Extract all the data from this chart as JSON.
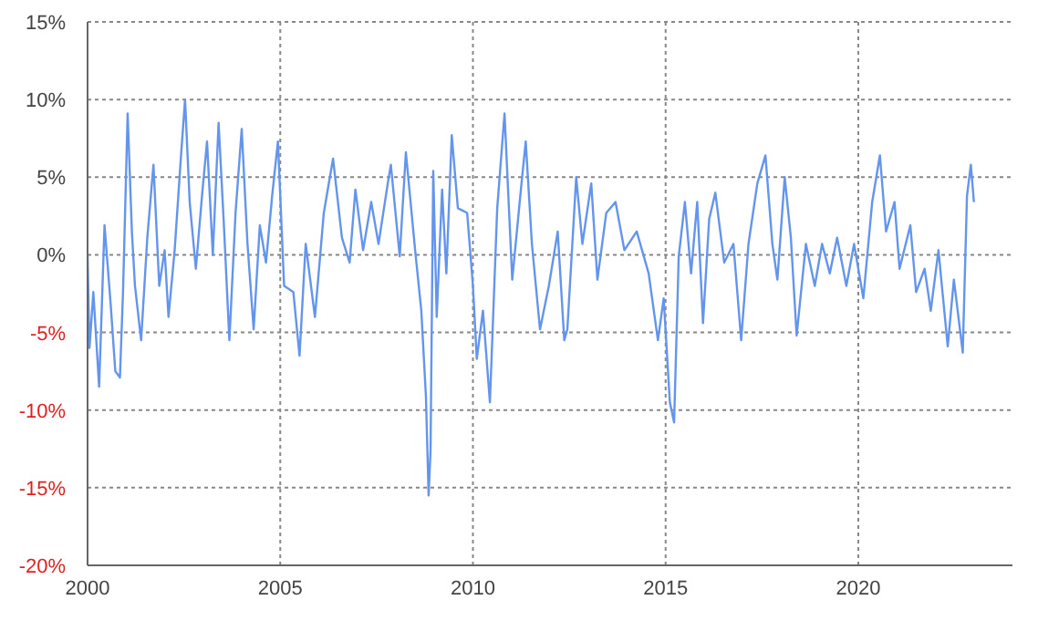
{
  "chart_data": {
    "type": "line",
    "x": [
      2000.0,
      2000.05,
      2000.15,
      2000.3,
      2000.44,
      2000.6,
      2000.72,
      2000.84,
      2000.92,
      2001.04,
      2001.15,
      2001.23,
      2001.39,
      2001.55,
      2001.71,
      2001.86,
      2002.0,
      2002.1,
      2002.26,
      2002.42,
      2002.53,
      2002.65,
      2002.81,
      2002.97,
      2003.1,
      2003.25,
      2003.4,
      2003.53,
      2003.68,
      2003.84,
      2004.0,
      2004.15,
      2004.31,
      2004.47,
      2004.63,
      2004.79,
      2004.94,
      2005.1,
      2005.34,
      2005.5,
      2005.66,
      2005.9,
      2006.13,
      2006.37,
      2006.6,
      2006.8,
      2006.95,
      2007.15,
      2007.36,
      2007.55,
      2007.79,
      2007.87,
      2008.1,
      2008.26,
      2008.5,
      2008.66,
      2008.78,
      2008.85,
      2008.9,
      2008.97,
      2009.06,
      2009.2,
      2009.31,
      2009.45,
      2009.61,
      2009.85,
      2010.0,
      2010.1,
      2010.26,
      2010.44,
      2010.63,
      2010.82,
      2011.02,
      2011.26,
      2011.37,
      2011.53,
      2011.74,
      2011.97,
      2012.2,
      2012.37,
      2012.45,
      2012.68,
      2012.84,
      2013.07,
      2013.23,
      2013.46,
      2013.7,
      2013.93,
      2014.25,
      2014.56,
      2014.8,
      2014.95,
      2015.11,
      2015.22,
      2015.34,
      2015.5,
      2015.66,
      2015.82,
      2015.97,
      2016.13,
      2016.29,
      2016.52,
      2016.76,
      2016.96,
      2017.15,
      2017.38,
      2017.59,
      2017.77,
      2017.9,
      2018.09,
      2018.25,
      2018.4,
      2018.64,
      2018.87,
      2019.06,
      2019.26,
      2019.45,
      2019.69,
      2019.89,
      2020.13,
      2020.36,
      2020.56,
      2020.72,
      2020.94,
      2021.07,
      2021.35,
      2021.5,
      2021.72,
      2021.88,
      2022.08,
      2022.32,
      2022.48,
      2022.71,
      2022.82,
      2022.92,
      2023.0
    ],
    "series": [
      {
        "color": "#6495ed",
        "values": [
          0,
          -6,
          -2.4,
          -8.5,
          1.9,
          -3.2,
          -7.5,
          -7.9,
          -2.4,
          9.1,
          1.5,
          -2,
          -5.5,
          1.1,
          5.8,
          -2,
          0.3,
          -4,
          0.3,
          6.2,
          10,
          3.4,
          -0.9,
          3.8,
          7.3,
          0,
          8.5,
          2.3,
          -5.5,
          2.7,
          8.1,
          0.7,
          -4.8,
          1.9,
          -0.5,
          3.8,
          7.3,
          -2,
          -2.4,
          -6.5,
          0.7,
          -4,
          2.7,
          6.2,
          1.1,
          -0.5,
          4.2,
          0.3,
          3.4,
          0.7,
          4.6,
          5.8,
          -0.1,
          6.6,
          0.3,
          -3.6,
          -9.1,
          -15.5,
          -12.6,
          5.4,
          -4,
          4.2,
          -1.2,
          7.7,
          3,
          2.7,
          -2,
          -6.7,
          -3.6,
          -9.5,
          3,
          9.1,
          -1.6,
          4.6,
          7.3,
          0.7,
          -4.8,
          -2,
          1.5,
          -5.5,
          -4.8,
          5,
          0.7,
          4.6,
          -1.6,
          2.7,
          3.4,
          0.3,
          1.5,
          -1.2,
          -5.5,
          -2.8,
          -9.5,
          -10.8,
          -0.1,
          3.4,
          -1.2,
          3.4,
          -4.4,
          2.3,
          4,
          -0.5,
          0.7,
          -5.5,
          0.7,
          4.6,
          6.4,
          0.7,
          -1.6,
          5,
          1.1,
          -5.2,
          0.7,
          -2,
          0.7,
          -1.2,
          1.1,
          -2,
          0.7,
          -2.8,
          3.4,
          6.4,
          1.5,
          3.4,
          -0.9,
          1.9,
          -2.4,
          -0.9,
          -3.6,
          0.3,
          -5.9,
          -1.6,
          -6.3,
          3.8,
          5.8,
          3.4
        ]
      }
    ],
    "xlim": [
      2000,
      2024
    ],
    "xticks": [
      2000,
      2005,
      2010,
      2015,
      2020
    ],
    "ylim": [
      -20,
      15
    ],
    "yticks": [
      {
        "value": -20,
        "label": "-20%"
      },
      {
        "value": -15,
        "label": "-15%"
      },
      {
        "value": -10,
        "label": "-10%"
      },
      {
        "value": -5,
        "label": "-5%"
      },
      {
        "value": 0,
        "label": "0%"
      },
      {
        "value": 5,
        "label": "5%"
      },
      {
        "value": 10,
        "label": "10%"
      },
      {
        "value": 15,
        "label": "15%"
      }
    ],
    "grid": true,
    "legend": false
  }
}
